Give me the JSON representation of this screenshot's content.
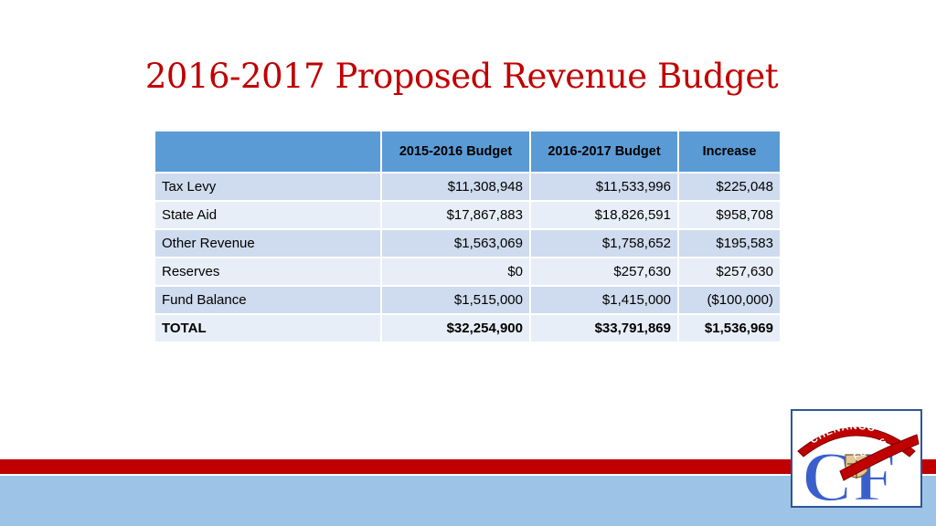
{
  "slide": {
    "title": "2016-2017 Proposed Revenue Budget"
  },
  "table": {
    "headers": [
      "",
      "2015-2016 Budget",
      "2016-2017 Budget",
      "Increase"
    ],
    "rows": [
      {
        "label": "Tax Levy",
        "b2015": "$11,308,948",
        "b2016": "$11,533,996",
        "increase": "$225,048"
      },
      {
        "label": "State Aid",
        "b2015": "$17,867,883",
        "b2016": "$18,826,591",
        "increase": "$958,708"
      },
      {
        "label": "Other Revenue",
        "b2015": "$1,563,069",
        "b2016": "$1,758,652",
        "increase": "$195,583"
      },
      {
        "label": "Reserves",
        "b2015": "$0",
        "b2016": "$257,630",
        "increase": "$257,630"
      },
      {
        "label": "Fund Balance",
        "b2015": "$1,515,000",
        "b2016": "$1,415,000",
        "increase": "($100,000)"
      },
      {
        "label": "TOTAL",
        "b2015": "$32,254,900",
        "b2016": "$33,791,869",
        "increase": "$1,536,969"
      }
    ]
  },
  "logo": {
    "banner_top": "CHENANGO",
    "banner_bottom": "FORKS",
    "letters": "CF"
  },
  "colors": {
    "title": "#c00000",
    "header_fill": "#5b9bd5",
    "row_dark": "#cfdbee",
    "row_light": "#e8eef7",
    "band_red": "#c00000",
    "band_blue": "#9dc3e6"
  }
}
